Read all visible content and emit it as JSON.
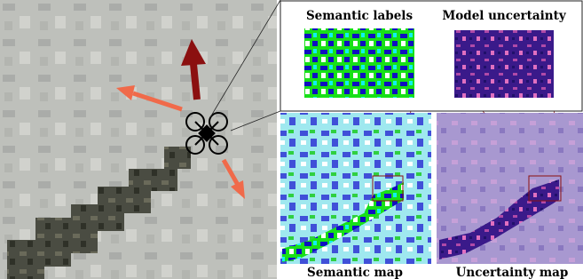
{
  "labels": {
    "semantic_labels": "Semantic labels",
    "model_uncertainty": "Model uncertainty",
    "semantic_map": "Semantic map",
    "uncertainty_map": "Uncertainty map"
  }
}
